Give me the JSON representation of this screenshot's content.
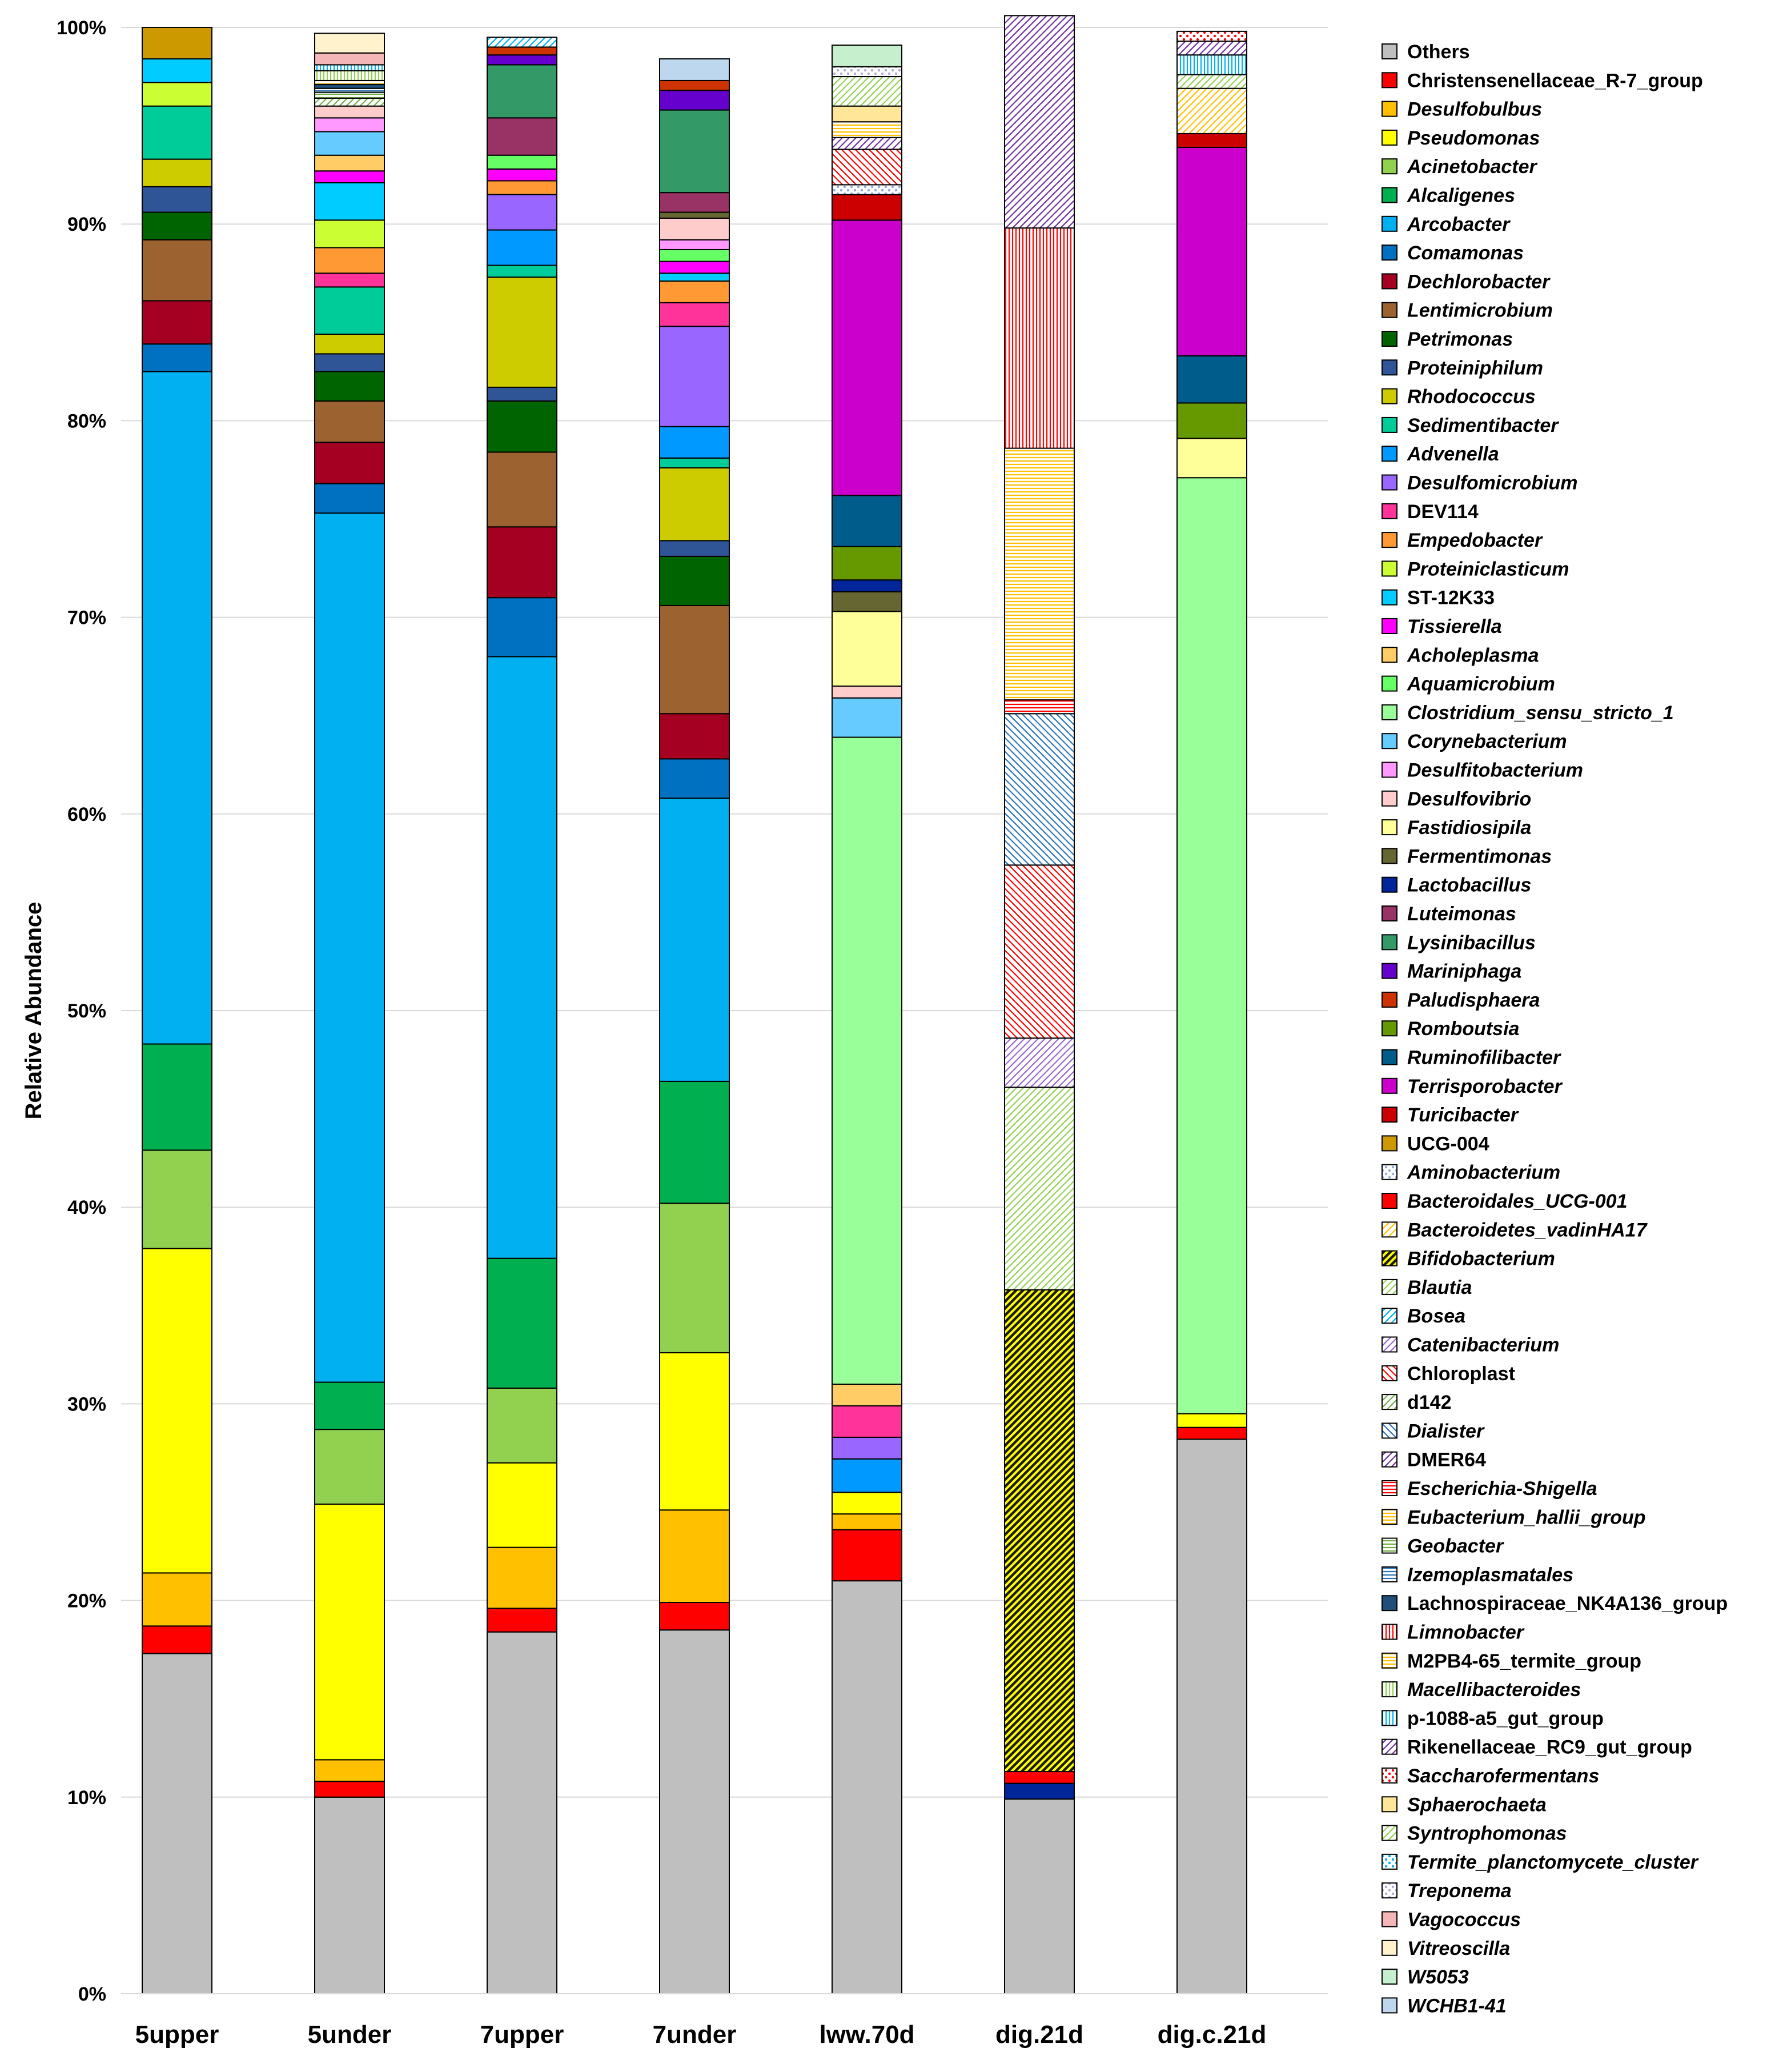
{
  "chart_data": {
    "type": "bar",
    "stacked": true,
    "ylabel": "Relative Abundance",
    "xlabel": "",
    "ylim": [
      0,
      100
    ],
    "yticks": [
      "0%",
      "10%",
      "20%",
      "30%",
      "40%",
      "50%",
      "60%",
      "70%",
      "80%",
      "90%",
      "100%"
    ],
    "grid": true,
    "legend_position": "right",
    "categories": [
      "5upper",
      "5under",
      "7upper",
      "7under",
      "lww.70d",
      "dig.21d",
      "dig.c.21d"
    ],
    "series": [
      {
        "name": "Others",
        "italic": false,
        "color": "#bfbfbf",
        "pattern": "solid",
        "values": [
          17.3,
          10.0,
          18.4,
          18.5,
          21.0,
          9.9,
          28.2
        ]
      },
      {
        "name": "Christensenellaceae_R-7_group",
        "italic": false,
        "color": "#ff0000",
        "pattern": "solid",
        "values": [
          1.4,
          0.8,
          1.2,
          1.4,
          2.6,
          0,
          0.6
        ]
      },
      {
        "name": "Desulfobulbus",
        "italic": true,
        "color": "#ffc000",
        "pattern": "solid",
        "values": [
          2.7,
          1.1,
          3.1,
          4.7,
          0.8,
          0,
          0
        ]
      },
      {
        "name": "Pseudomonas",
        "italic": true,
        "color": "#ffff00",
        "pattern": "solid",
        "values": [
          16.5,
          13.0,
          4.3,
          8.0,
          1.1,
          0,
          0.7
        ]
      },
      {
        "name": "Acinetobacter",
        "italic": true,
        "color": "#92d050",
        "pattern": "solid",
        "values": [
          5.0,
          3.8,
          3.8,
          7.6,
          0,
          0,
          0
        ]
      },
      {
        "name": "Alcaligenes",
        "italic": true,
        "color": "#00b050",
        "pattern": "solid",
        "values": [
          5.4,
          2.4,
          6.6,
          6.2,
          0,
          0,
          0
        ]
      },
      {
        "name": "Arcobacter",
        "italic": true,
        "color": "#00b0f0",
        "pattern": "solid",
        "values": [
          34.2,
          44.2,
          30.6,
          14.4,
          0,
          0,
          0
        ]
      },
      {
        "name": "Comamonas",
        "italic": true,
        "color": "#0070c0",
        "pattern": "solid",
        "values": [
          1.4,
          1.5,
          3.0,
          2.0,
          0,
          0,
          0
        ]
      },
      {
        "name": "Dechlorobacter",
        "italic": true,
        "color": "#a50021",
        "pattern": "solid",
        "values": [
          2.2,
          2.1,
          3.6,
          2.3,
          0,
          0,
          0
        ]
      },
      {
        "name": "Lentimicrobium",
        "italic": true,
        "color": "#9c6230",
        "pattern": "solid",
        "values": [
          3.1,
          2.1,
          3.8,
          5.5,
          0,
          0,
          0
        ]
      },
      {
        "name": "Petrimonas",
        "italic": true,
        "color": "#006400",
        "pattern": "solid",
        "values": [
          1.4,
          1.5,
          2.6,
          2.5,
          0,
          0,
          0
        ]
      },
      {
        "name": "Proteiniphilum",
        "italic": true,
        "color": "#2f5597",
        "pattern": "solid",
        "values": [
          1.3,
          0.9,
          0.7,
          0.8,
          0,
          0,
          0
        ]
      },
      {
        "name": "Rhodococcus",
        "italic": true,
        "color": "#cccc00",
        "pattern": "solid",
        "values": [
          1.4,
          1.0,
          5.6,
          3.7,
          0,
          0,
          0
        ]
      },
      {
        "name": "Sedimentibacter",
        "italic": true,
        "color": "#00cc99",
        "pattern": "solid",
        "values": [
          2.7,
          2.4,
          0.6,
          0.5,
          0,
          0,
          0
        ]
      },
      {
        "name": "Advenella",
        "italic": true,
        "color": "#0099ff",
        "pattern": "solid",
        "values": [
          0,
          0,
          1.8,
          1.6,
          1.7,
          0,
          0
        ]
      },
      {
        "name": "Desulfomicrobium",
        "italic": true,
        "color": "#9966ff",
        "pattern": "solid",
        "values": [
          0,
          0,
          1.8,
          5.1,
          1.1,
          0,
          0
        ]
      },
      {
        "name": "DEV114",
        "italic": false,
        "color": "#ff3399",
        "pattern": "solid",
        "values": [
          0,
          0.7,
          0,
          1.2,
          1.6,
          0,
          0
        ]
      },
      {
        "name": "Empedobacter",
        "italic": true,
        "color": "#ff9933",
        "pattern": "solid",
        "values": [
          0,
          1.3,
          0.7,
          1.1,
          0,
          0,
          0
        ]
      },
      {
        "name": "Proteiniclasticum",
        "italic": true,
        "color": "#ccff33",
        "pattern": "solid",
        "values": [
          1.2,
          1.4,
          0,
          0,
          0,
          0,
          0
        ]
      },
      {
        "name": "ST-12K33",
        "italic": false,
        "color": "#00ccff",
        "pattern": "solid",
        "values": [
          1.2,
          1.9,
          0,
          0.4,
          0,
          0,
          0
        ]
      },
      {
        "name": "Tissierella",
        "italic": true,
        "color": "#ff00ff",
        "pattern": "solid",
        "values": [
          0,
          0.6,
          0.6,
          0.6,
          0,
          0,
          0
        ]
      },
      {
        "name": "Acholeplasma",
        "italic": true,
        "color": "#ffcc66",
        "pattern": "solid",
        "values": [
          0,
          0.8,
          0,
          0,
          1.1,
          0,
          0
        ]
      },
      {
        "name": "Aquamicrobium",
        "italic": true,
        "color": "#66ff66",
        "pattern": "solid",
        "values": [
          0,
          0,
          0.7,
          0.6,
          0,
          0,
          0
        ]
      },
      {
        "name": "Clostridium_sensu_stricto_1",
        "italic": true,
        "color": "#99ff99",
        "pattern": "solid",
        "values": [
          0,
          0,
          0,
          0,
          32.9,
          0,
          47.6
        ]
      },
      {
        "name": "Corynebacterium",
        "italic": true,
        "color": "#66ccff",
        "pattern": "solid",
        "values": [
          0,
          1.2,
          0,
          0,
          2.0,
          0,
          0
        ]
      },
      {
        "name": "Desulfitobacterium",
        "italic": true,
        "color": "#ff99ff",
        "pattern": "solid",
        "values": [
          0,
          0.7,
          0,
          0.5,
          0,
          0,
          0
        ]
      },
      {
        "name": "Desulfovibrio",
        "italic": true,
        "color": "#ffcccc",
        "pattern": "solid",
        "values": [
          0,
          0.6,
          0,
          1.1,
          0.6,
          0,
          0
        ]
      },
      {
        "name": "Fastidiosipila",
        "italic": true,
        "color": "#ffff99",
        "pattern": "solid",
        "values": [
          0,
          0,
          0,
          0,
          3.8,
          0,
          2.0
        ]
      },
      {
        "name": "Fermentimonas",
        "italic": true,
        "color": "#666633",
        "pattern": "solid",
        "values": [
          0,
          0,
          0,
          0.3,
          1.0,
          0,
          0
        ]
      },
      {
        "name": "Lactobacillus",
        "italic": true,
        "color": "#002699",
        "pattern": "solid",
        "values": [
          0,
          0,
          0,
          0,
          0.6,
          0.8,
          0
        ]
      },
      {
        "name": "Luteimonas",
        "italic": true,
        "color": "#993366",
        "pattern": "solid",
        "values": [
          0,
          0,
          1.9,
          1.0,
          0,
          0,
          0
        ]
      },
      {
        "name": "Lysinibacillus",
        "italic": true,
        "color": "#339966",
        "pattern": "solid",
        "values": [
          0,
          0,
          2.7,
          4.2,
          0,
          0,
          0
        ]
      },
      {
        "name": "Mariniphaga",
        "italic": true,
        "color": "#6600cc",
        "pattern": "solid",
        "values": [
          0,
          0,
          0.5,
          1.0,
          0,
          0,
          0
        ]
      },
      {
        "name": "Paludisphaera",
        "italic": true,
        "color": "#cc3300",
        "pattern": "solid",
        "values": [
          0,
          0,
          0.4,
          0.5,
          0,
          0,
          0
        ]
      },
      {
        "name": "Romboutsia",
        "italic": true,
        "color": "#669900",
        "pattern": "solid",
        "values": [
          0,
          0,
          0,
          0,
          1.7,
          0,
          1.8
        ]
      },
      {
        "name": "Ruminofilibacter",
        "italic": true,
        "color": "#005c8a",
        "pattern": "solid",
        "values": [
          0,
          0,
          0,
          0,
          2.6,
          0,
          2.4
        ]
      },
      {
        "name": "Terrisporobacter",
        "italic": true,
        "color": "#cc00cc",
        "pattern": "solid",
        "values": [
          0,
          0,
          0,
          0,
          14.0,
          0,
          10.6
        ]
      },
      {
        "name": "Turicibacter",
        "italic": true,
        "color": "#cc0000",
        "pattern": "solid",
        "values": [
          0,
          0,
          0,
          0,
          1.3,
          0,
          0.7
        ]
      },
      {
        "name": "UCG-004",
        "italic": false,
        "color": "#cc9900",
        "pattern": "solid",
        "values": [
          1.6,
          0,
          0,
          0,
          0,
          0,
          0
        ]
      },
      {
        "name": "Aminobacterium",
        "italic": true,
        "color": "#8ea9db",
        "pattern": "dots",
        "values": [
          0,
          0,
          0,
          0,
          0.5,
          0,
          0
        ]
      },
      {
        "name": "Bacteroidales_UCG-001",
        "italic": true,
        "color": "#ff0000",
        "pattern": "solid",
        "values": [
          0,
          0,
          0,
          0,
          0,
          0.6,
          0
        ]
      },
      {
        "name": "Bacteroidetes_vadinHA17",
        "italic": true,
        "color": "#ffc000",
        "pattern": "diag",
        "values": [
          0,
          0,
          0,
          0,
          0,
          0,
          2.3
        ]
      },
      {
        "name": "Bifidobacterium",
        "italic": true,
        "color": "#ffff00",
        "pattern": "diag-dark",
        "values": [
          0,
          0,
          0,
          0,
          0,
          24.5,
          0
        ]
      },
      {
        "name": "Blautia",
        "italic": true,
        "color": "#92d050",
        "pattern": "diag",
        "values": [
          0,
          0,
          0,
          0,
          0,
          10.3,
          0.7
        ]
      },
      {
        "name": "Bosea",
        "italic": true,
        "color": "#00b0f0",
        "pattern": "diag",
        "values": [
          0,
          0,
          0.5,
          0,
          0,
          0,
          0
        ]
      },
      {
        "name": "Catenibacterium",
        "italic": true,
        "color": "#9966cc",
        "pattern": "diag",
        "values": [
          0,
          0,
          0,
          0,
          0,
          2.5,
          0
        ]
      },
      {
        "name": "Chloroplast",
        "italic": false,
        "color": "#ff0000",
        "pattern": "diag-back",
        "values": [
          0,
          0,
          0,
          0,
          1.8,
          8.8,
          0
        ]
      },
      {
        "name": "d142",
        "italic": false,
        "color": "#70ad47",
        "pattern": "diag",
        "values": [
          0,
          0.4,
          0,
          0,
          0,
          0,
          0
        ]
      },
      {
        "name": "Dialister",
        "italic": true,
        "color": "#2e75b6",
        "pattern": "diag-back",
        "values": [
          0,
          0,
          0,
          0,
          0,
          7.7,
          0
        ]
      },
      {
        "name": "DMER64",
        "italic": false,
        "color": "#7030a0",
        "pattern": "diag",
        "values": [
          0,
          0,
          0,
          0,
          0.6,
          0,
          0
        ]
      },
      {
        "name": "Escherichia-Shigella",
        "italic": true,
        "color": "#ff0000",
        "pattern": "hlines",
        "values": [
          0,
          0,
          0,
          0,
          0,
          0.7,
          0
        ]
      },
      {
        "name": "Eubacterium_hallii_group",
        "italic": true,
        "color": "#ffc000",
        "pattern": "hlines",
        "values": [
          0,
          0,
          0,
          0,
          0,
          12.8,
          0
        ]
      },
      {
        "name": "Geobacter",
        "italic": true,
        "color": "#70ad47",
        "pattern": "hlines",
        "values": [
          0,
          0.3,
          0,
          0,
          0,
          0,
          0
        ]
      },
      {
        "name": "Izemoplasmatales",
        "italic": true,
        "color": "#2e75b6",
        "pattern": "hlines",
        "values": [
          0,
          0.2,
          0,
          0,
          0,
          0,
          0
        ]
      },
      {
        "name": "Lachnospiraceae_NK4A136_group",
        "italic": false,
        "color": "#1f4e79",
        "pattern": "solid",
        "values": [
          0,
          0.2,
          0,
          0,
          0,
          0,
          0
        ]
      },
      {
        "name": "Limnobacter",
        "italic": true,
        "color": "#ff0000",
        "pattern": "vlines",
        "values": [
          0,
          0,
          0,
          0,
          0,
          11.2,
          0
        ]
      },
      {
        "name": "M2PB4-65_termite_group",
        "italic": false,
        "color": "#ffc000",
        "pattern": "hlines",
        "values": [
          0,
          0.2,
          0,
          0,
          0.8,
          0,
          0
        ]
      },
      {
        "name": "Macellibacteroides",
        "italic": true,
        "color": "#92d050",
        "pattern": "vlines",
        "values": [
          0,
          0.5,
          0,
          0,
          0,
          0,
          0
        ]
      },
      {
        "name": "p-1088-a5_gut_group",
        "italic": false,
        "color": "#00b0f0",
        "pattern": "vlines",
        "values": [
          0,
          0.3,
          0,
          0,
          0,
          0,
          1.0
        ]
      },
      {
        "name": "Rikenellaceae_RC9_gut_group",
        "italic": false,
        "color": "#7030a0",
        "pattern": "diag",
        "values": [
          0,
          0,
          0,
          0,
          0,
          10.8,
          0.7
        ]
      },
      {
        "name": "Saccharofermentans",
        "italic": true,
        "color": "#ff0000",
        "pattern": "dots",
        "values": [
          0,
          0,
          0,
          0,
          0,
          0,
          0.5
        ]
      },
      {
        "name": "Sphaerochaeta",
        "italic": true,
        "color": "#ffe699",
        "pattern": "solid",
        "values": [
          0,
          0,
          0,
          0,
          0.8,
          0,
          0
        ]
      },
      {
        "name": "Syntrophomonas",
        "italic": true,
        "color": "#92d050",
        "pattern": "diag",
        "values": [
          0,
          0,
          0,
          0,
          1.5,
          0,
          0
        ]
      },
      {
        "name": "Termite_planctomycete_cluster",
        "italic": true,
        "color": "#00b0f0",
        "pattern": "dots",
        "values": [
          0,
          0,
          0,
          0,
          0,
          0,
          0
        ]
      },
      {
        "name": "Treponema",
        "italic": true,
        "color": "#b4a7d6",
        "pattern": "dots",
        "values": [
          0,
          0,
          0,
          0,
          0.5,
          0,
          0
        ]
      },
      {
        "name": "Vagococcus",
        "italic": true,
        "color": "#f4b6b6",
        "pattern": "solid",
        "values": [
          0,
          0.6,
          0,
          0,
          0,
          0,
          0
        ]
      },
      {
        "name": "Vitreoscilla",
        "italic": true,
        "color": "#fff2cc",
        "pattern": "solid",
        "values": [
          0,
          1.0,
          0,
          0,
          0,
          0,
          0
        ]
      },
      {
        "name": "W5053",
        "italic": true,
        "color": "#c6efce",
        "pattern": "solid",
        "values": [
          0,
          0,
          0,
          0,
          1.1,
          0,
          0
        ]
      },
      {
        "name": "WCHB1-41",
        "italic": true,
        "color": "#bdd7ee",
        "pattern": "solid",
        "values": [
          0,
          0,
          0,
          1.1,
          0,
          0,
          0
        ]
      }
    ]
  }
}
